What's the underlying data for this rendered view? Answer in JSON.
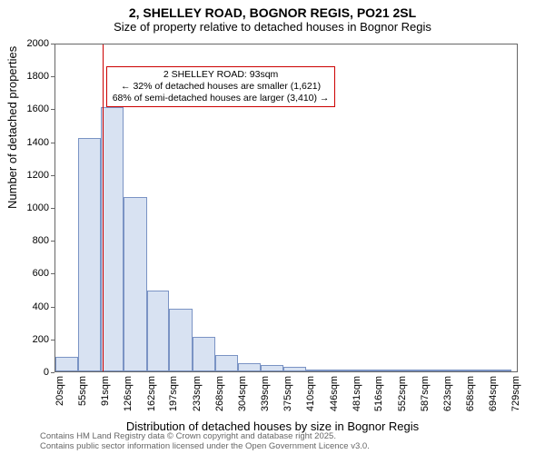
{
  "title_line1": "2, SHELLEY ROAD, BOGNOR REGIS, PO21 2SL",
  "title_line2": "Size of property relative to detached houses in Bognor Regis",
  "y_axis_label": "Number of detached properties",
  "x_axis_label": "Distribution of detached houses by size in Bognor Regis",
  "footer_line1": "Contains HM Land Registry data © Crown copyright and database right 2025.",
  "footer_line2": "Contains public sector information licensed under the Open Government Licence v3.0.",
  "chart": {
    "type": "histogram",
    "ylim": [
      0,
      2000
    ],
    "ytick_step": 200,
    "xlim": [
      20,
      740
    ],
    "x_ticks": [
      20,
      55,
      91,
      126,
      162,
      197,
      233,
      268,
      304,
      339,
      375,
      410,
      446,
      481,
      516,
      552,
      587,
      623,
      658,
      694,
      729
    ],
    "x_tick_suffix": "sqm",
    "bars": [
      {
        "x0": 20,
        "x1": 55,
        "value": 90
      },
      {
        "x0": 55,
        "x1": 91,
        "value": 1420
      },
      {
        "x0": 91,
        "x1": 126,
        "value": 1610
      },
      {
        "x0": 126,
        "x1": 162,
        "value": 1060
      },
      {
        "x0": 162,
        "x1": 197,
        "value": 490
      },
      {
        "x0": 197,
        "x1": 233,
        "value": 380
      },
      {
        "x0": 233,
        "x1": 268,
        "value": 210
      },
      {
        "x0": 268,
        "x1": 304,
        "value": 100
      },
      {
        "x0": 304,
        "x1": 339,
        "value": 50
      },
      {
        "x0": 339,
        "x1": 375,
        "value": 40
      },
      {
        "x0": 375,
        "x1": 410,
        "value": 30
      },
      {
        "x0": 410,
        "x1": 446,
        "value": 10
      },
      {
        "x0": 446,
        "x1": 481,
        "value": 6
      },
      {
        "x0": 481,
        "x1": 516,
        "value": 6
      },
      {
        "x0": 516,
        "x1": 552,
        "value": 4
      },
      {
        "x0": 552,
        "x1": 587,
        "value": 4
      },
      {
        "x0": 587,
        "x1": 623,
        "value": 2
      },
      {
        "x0": 623,
        "x1": 658,
        "value": 2
      },
      {
        "x0": 658,
        "x1": 694,
        "value": 2
      },
      {
        "x0": 694,
        "x1": 729,
        "value": 2
      }
    ],
    "bar_fill": "#d8e2f2",
    "bar_border": "#7a93c4",
    "marker_value_x": 93,
    "marker_color": "#cc0000",
    "annotation": {
      "line1": "2 SHELLEY ROAD: 93sqm",
      "line2": "← 32% of detached houses are smaller (1,621)",
      "line3": "68% of semi-detached houses are larger (3,410) →",
      "border_color": "#cc0000",
      "x_data": 230,
      "y_data": 1870
    },
    "background_color": "#ffffff",
    "axis_color": "#666666",
    "tick_fontsize": 11,
    "label_fontsize": 13,
    "title_fontsize": 14
  }
}
